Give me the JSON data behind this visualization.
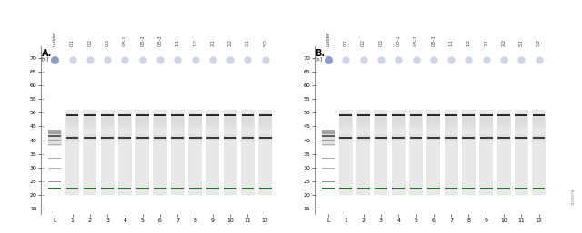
{
  "panel_labels": [
    "A.",
    "B."
  ],
  "x_unit": "[s]",
  "col_labels": [
    "Ladder",
    "0-1",
    "0-2",
    "0-3",
    "0.5-1",
    "0.5-2",
    "0.5-3",
    "1-1",
    "1-2",
    "2-1",
    "2-2",
    "5-1",
    "5-2"
  ],
  "x_tick_labels": [
    "L",
    "1",
    "2",
    "3",
    "4",
    "5",
    "6",
    "7",
    "8",
    "9",
    "10",
    "11",
    "12"
  ],
  "y_ticks": [
    15,
    20,
    25,
    30,
    35,
    40,
    45,
    50,
    55,
    60,
    65,
    70
  ],
  "dot_color_ladder": "#8090c0",
  "dot_color_sample": "#c0c8e0",
  "green_color": "#267326",
  "watermark": "110897A",
  "panel_bg": "#f2f2f2"
}
